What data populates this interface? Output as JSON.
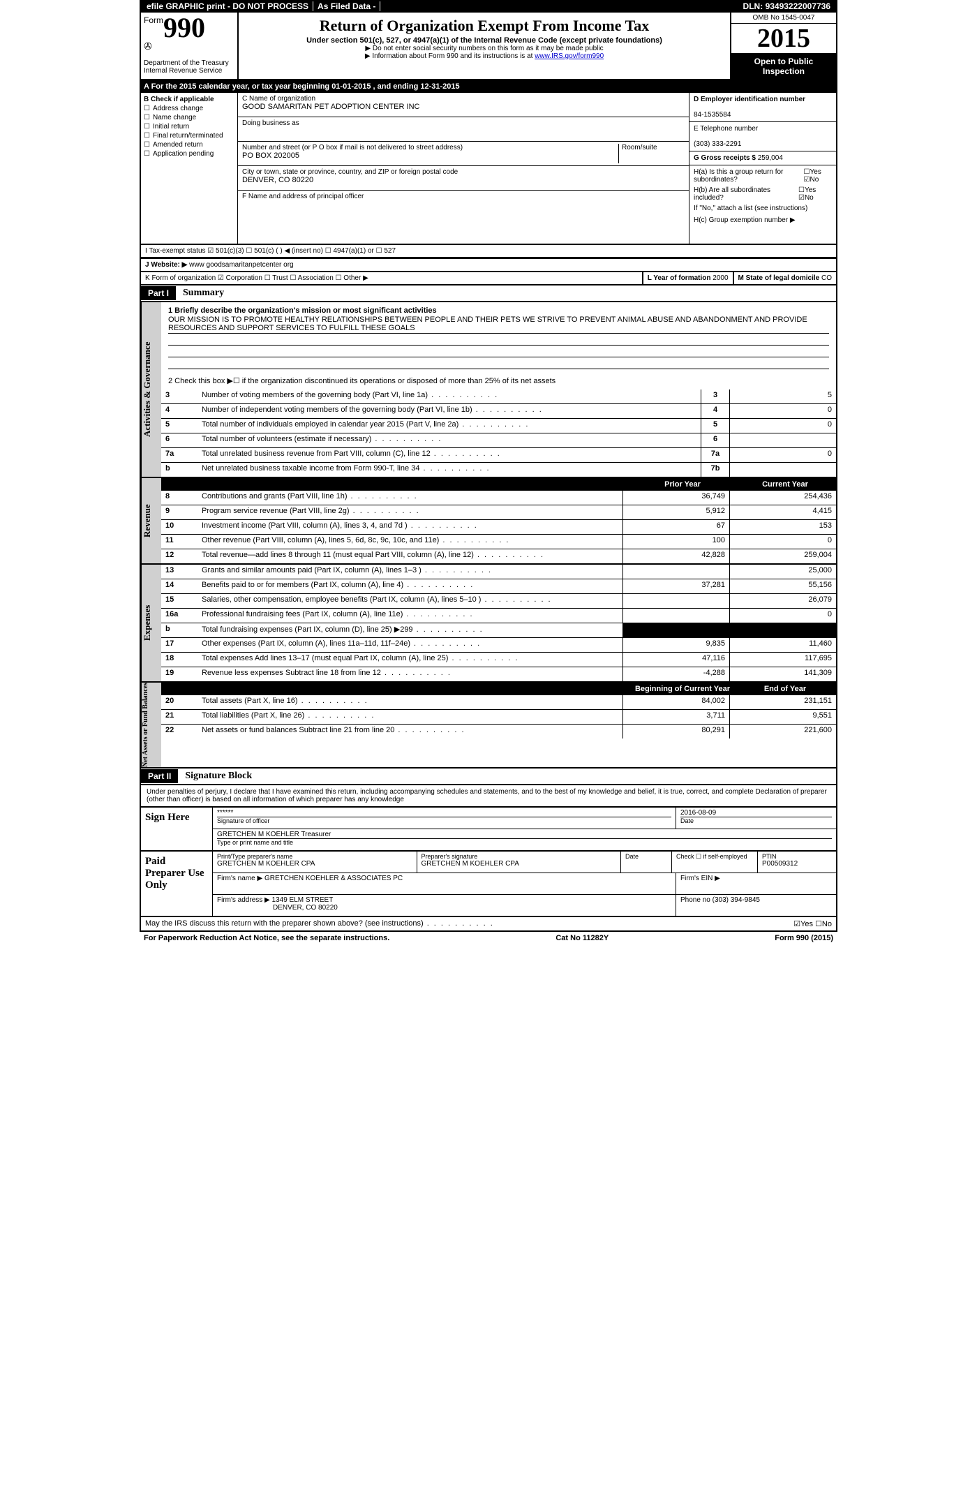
{
  "topbar": {
    "efile": "efile GRAPHIC print - DO NOT PROCESS",
    "asfiled": "As Filed Data -",
    "dln_label": "DLN:",
    "dln": "93493222007736"
  },
  "header": {
    "form_label": "Form",
    "form_no": "990",
    "dept": "Department of the Treasury",
    "irs": "Internal Revenue Service",
    "title": "Return of Organization Exempt From Income Tax",
    "subtitle": "Under section 501(c), 527, or 4947(a)(1) of the Internal Revenue Code (except private foundations)",
    "note1": "▶ Do not enter social security numbers on this form as it may be made public",
    "note2_pre": "▶ Information about Form 990 and its instructions is at ",
    "note2_link": "www.IRS.gov/form990",
    "omb": "OMB No 1545-0047",
    "year": "2015",
    "open": "Open to Public Inspection"
  },
  "rowA": "A  For the 2015 calendar year, or tax year beginning 01-01-2015    , and ending 12-31-2015",
  "boxB": {
    "title": "B Check if applicable",
    "opts": [
      "Address change",
      "Name change",
      "Initial return",
      "Final return/terminated",
      "Amended return",
      "Application pending"
    ]
  },
  "boxC": {
    "name_label": "C Name of organization",
    "name": "GOOD SAMARITAN PET ADOPTION CENTER INC",
    "dba_label": "Doing business as",
    "dba": "",
    "street_label": "Number and street (or P O box if mail is not delivered to street address)",
    "room_label": "Room/suite",
    "street": "PO BOX 202005",
    "city_label": "City or town, state or province, country, and ZIP or foreign postal code",
    "city": "DENVER, CO 80220",
    "officer_label": "F  Name and address of principal officer",
    "officer": ""
  },
  "boxD": {
    "ein_label": "D Employer identification number",
    "ein": "84-1535584",
    "phone_label": "E Telephone number",
    "phone": "(303) 333-2291",
    "gross_label": "G Gross receipts $",
    "gross": "259,004",
    "ha": "H(a)  Is this a group return for subordinates?",
    "hb": "H(b)  Are all subordinates included?",
    "yn": "☐Yes ☑No",
    "yn2": "☐Yes ☑No",
    "hnote": "If \"No,\" attach a list (see instructions)",
    "hc": "H(c)  Group exemption number ▶"
  },
  "rowI": "I  Tax-exempt status     ☑ 501(c)(3)    ☐ 501(c) (  ) ◀ (insert no)    ☐ 4947(a)(1) or  ☐ 527",
  "rowJ_label": "J  Website: ▶",
  "rowJ": "www goodsamaritanpetcenter org",
  "rowK": {
    "form": "K Form of organization  ☑ Corporation ☐ Trust ☐ Association ☐ Other ▶",
    "year_label": "L Year of formation",
    "year": "2000",
    "state_label": "M State of legal domicile",
    "state": "CO"
  },
  "partI": {
    "tag": "Part I",
    "title": "Summary",
    "q1_label": "1 Briefly describe the organization's mission or most significant activities",
    "q1": "OUR MISSION IS TO PROMOTE HEALTHY RELATIONSHIPS BETWEEN PEOPLE AND THEIR PETS  WE STRIVE TO PREVENT ANIMAL ABUSE AND ABANDONMENT AND PROVIDE RESOURCES AND SUPPORT SERVICES TO FULFILL THESE GOALS",
    "q2": "2 Check this box ▶☐ if the organization discontinued its operations or disposed of more than 25% of its net assets",
    "govRows": [
      {
        "n": "3",
        "d": "Number of voting members of the governing body (Part VI, line 1a)",
        "c": "3",
        "v": "5"
      },
      {
        "n": "4",
        "d": "Number of independent voting members of the governing body (Part VI, line 1b)",
        "c": "4",
        "v": "0"
      },
      {
        "n": "5",
        "d": "Total number of individuals employed in calendar year 2015 (Part V, line 2a)",
        "c": "5",
        "v": "0"
      },
      {
        "n": "6",
        "d": "Total number of volunteers (estimate if necessary)",
        "c": "6",
        "v": ""
      },
      {
        "n": "7a",
        "d": "Total unrelated business revenue from Part VIII, column (C), line 12",
        "c": "7a",
        "v": "0"
      },
      {
        "n": "b",
        "d": "Net unrelated business taxable income from Form 990-T, line 34",
        "c": "7b",
        "v": ""
      }
    ],
    "hdr_prior": "Prior Year",
    "hdr_curr": "Current Year",
    "revRows": [
      {
        "n": "8",
        "d": "Contributions and grants (Part VIII, line 1h)",
        "p": "36,749",
        "c": "254,436"
      },
      {
        "n": "9",
        "d": "Program service revenue (Part VIII, line 2g)",
        "p": "5,912",
        "c": "4,415"
      },
      {
        "n": "10",
        "d": "Investment income (Part VIII, column (A), lines 3, 4, and 7d )",
        "p": "67",
        "c": "153"
      },
      {
        "n": "11",
        "d": "Other revenue (Part VIII, column (A), lines 5, 6d, 8c, 9c, 10c, and 11e)",
        "p": "100",
        "c": "0"
      },
      {
        "n": "12",
        "d": "Total revenue—add lines 8 through 11 (must equal Part VIII, column (A), line 12)",
        "p": "42,828",
        "c": "259,004"
      }
    ],
    "expRows": [
      {
        "n": "13",
        "d": "Grants and similar amounts paid (Part IX, column (A), lines 1–3 )",
        "p": "",
        "c": "25,000"
      },
      {
        "n": "14",
        "d": "Benefits paid to or for members (Part IX, column (A), line 4)",
        "p": "37,281",
        "c": "55,156"
      },
      {
        "n": "15",
        "d": "Salaries, other compensation, employee benefits (Part IX, column (A), lines 5–10 )",
        "p": "",
        "c": "26,079"
      },
      {
        "n": "16a",
        "d": "Professional fundraising fees (Part IX, column (A), line 11e)",
        "p": "",
        "c": "0"
      },
      {
        "n": "b",
        "d": "Total fundraising expenses (Part IX, column (D), line 25) ▶299",
        "p": "BLACK",
        "c": "BLACK"
      },
      {
        "n": "17",
        "d": "Other expenses (Part IX, column (A), lines 11a–11d, 11f–24e)",
        "p": "9,835",
        "c": "11,460"
      },
      {
        "n": "18",
        "d": "Total expenses  Add lines 13–17 (must equal Part IX, column (A), line 25)",
        "p": "47,116",
        "c": "117,695"
      },
      {
        "n": "19",
        "d": "Revenue less expenses  Subtract line 18 from line 12",
        "p": "-4,288",
        "c": "141,309"
      }
    ],
    "hdr_begin": "Beginning of Current Year",
    "hdr_end": "End of Year",
    "netRows": [
      {
        "n": "20",
        "d": "Total assets (Part X, line 16)",
        "p": "84,002",
        "c": "231,151"
      },
      {
        "n": "21",
        "d": "Total liabilities (Part X, line 26)",
        "p": "3,711",
        "c": "9,551"
      },
      {
        "n": "22",
        "d": "Net assets or fund balances  Subtract line 21 from line 20",
        "p": "80,291",
        "c": "221,600"
      }
    ]
  },
  "partII": {
    "tag": "Part II",
    "title": "Signature Block",
    "decl": "Under penalties of perjury, I declare that I have examined this return, including accompanying schedules and statements, and to the best of my knowledge and belief, it is true, correct, and complete  Declaration of preparer (other than officer) is based on all information of which preparer has any knowledge"
  },
  "sign": {
    "left1": "Sign Here",
    "stars": "******",
    "sig_lbl": "Signature of officer",
    "date": "2016-08-09",
    "date_lbl": "Date",
    "name": "GRETCHEN M KOEHLER Treasurer",
    "name_lbl": "Type or print name and title",
    "left2": "Paid Preparer Use Only",
    "prep_name_lbl": "Print/Type preparer's name",
    "prep_name": "GRETCHEN M KOEHLER CPA",
    "prep_sig_lbl": "Preparer's signature",
    "prep_sig": "GRETCHEN M KOEHLER CPA",
    "pd_date_lbl": "Date",
    "self_lbl": "Check ☐ if self-employed",
    "ptin_lbl": "PTIN",
    "ptin": "P00509312",
    "firm_lbl": "Firm's name  ▶",
    "firm": "GRETCHEN KOEHLER & ASSOCIATES PC",
    "fein_lbl": "Firm's EIN ▶",
    "fein": "",
    "addr_lbl": "Firm's address ▶",
    "addr": "1349 ELM STREET",
    "city": "DENVER, CO 80220",
    "phone_lbl": "Phone no",
    "phone": "(303) 394-9845"
  },
  "footer": {
    "q": "May the IRS discuss this return with the preparer shown above? (see instructions)",
    "ans": "☑Yes ☐No",
    "pra": "For Paperwork Reduction Act Notice, see the separate instructions.",
    "cat": "Cat No 11282Y",
    "formno": "Form 990 (2015)"
  }
}
